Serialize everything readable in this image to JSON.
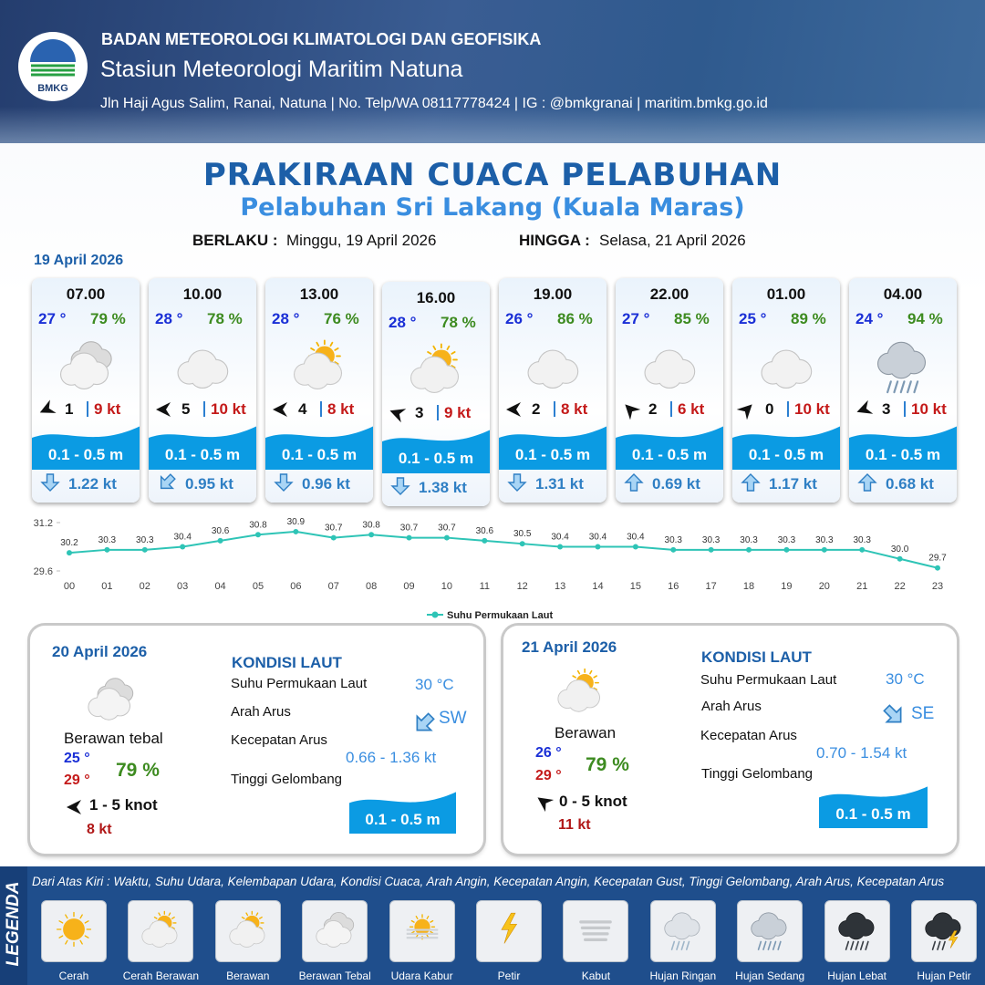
{
  "header": {
    "logo": "BMKG",
    "agency": "BADAN METEOROLOGI KLIMATOLOGI DAN GEOFISIKA",
    "station": "Stasiun Meteorologi Maritim Natuna",
    "address": "Jln Haji Agus Salim, Ranai, Natuna  | No. Telp/WA 08117778424 | IG : @bmkgranai | maritim.bmkg.go.id"
  },
  "title": "PRAKIRAAN CUACA PELABUHAN",
  "subtitle": "Pelabuhan Sri Lakang (Kuala Maras)",
  "validity": {
    "from_label": "BERLAKU :",
    "from": "Minggu, 19 April 2026",
    "to_label": "HINGGA :",
    "to": "Selasa, 21 April 2026"
  },
  "today": {
    "date": "19 April 2026",
    "forecasts": [
      {
        "time": "07.00",
        "temp": "27 °",
        "humidity": "79 %",
        "wind": "1",
        "gust": "9 kt",
        "wave": "0.1 - 0.5 m",
        "current": "1.22 kt"
      },
      {
        "time": "10.00",
        "temp": "28 °",
        "humidity": "78 %",
        "wind": "5",
        "gust": "10 kt",
        "wave": "0.1 - 0.5 m",
        "current": "0.95 kt"
      },
      {
        "time": "13.00",
        "temp": "28 °",
        "humidity": "76 %",
        "wind": "4",
        "gust": "8 kt",
        "wave": "0.1 - 0.5 m",
        "current": "0.96 kt"
      },
      {
        "time": "16.00",
        "temp": "28 °",
        "humidity": "78 %",
        "wind": "3",
        "gust": "9 kt",
        "wave": "0.1 - 0.5 m",
        "current": "1.38 kt"
      },
      {
        "time": "19.00",
        "temp": "26 °",
        "humidity": "86 %",
        "wind": "2",
        "gust": "8 kt",
        "wave": "0.1 - 0.5 m",
        "current": "1.31 kt"
      },
      {
        "time": "22.00",
        "temp": "27 °",
        "humidity": "85 %",
        "wind": "2",
        "gust": "6 kt",
        "wave": "0.1 - 0.5 m",
        "current": "0.69 kt"
      },
      {
        "time": "01.00",
        "temp": "25 °",
        "humidity": "89 %",
        "wind": "0",
        "gust": "10 kt",
        "wave": "0.1 - 0.5 m",
        "current": "1.17 kt"
      },
      {
        "time": "04.00",
        "temp": "24 °",
        "humidity": "94 %",
        "wind": "3",
        "gust": "10 kt",
        "wave": "0.1 - 0.5 m",
        "current": "0.68 kt"
      }
    ]
  },
  "chart_data": {
    "type": "line",
    "categories": [
      "00",
      "01",
      "02",
      "03",
      "04",
      "05",
      "06",
      "07",
      "08",
      "09",
      "10",
      "11",
      "12",
      "13",
      "14",
      "15",
      "16",
      "17",
      "18",
      "19",
      "20",
      "21",
      "22",
      "23"
    ],
    "ylim": [
      29.6,
      31.2
    ],
    "yticks": [
      29.6,
      31.2
    ],
    "legend": "bottom",
    "series": [
      {
        "name": "Suhu Permukaan Laut",
        "color": "#2ec4b6",
        "values": [
          30.2,
          30.3,
          30.3,
          30.4,
          30.6,
          30.8,
          30.9,
          30.7,
          30.8,
          30.7,
          30.7,
          30.6,
          30.5,
          30.4,
          30.4,
          30.4,
          30.3,
          30.3,
          30.3,
          30.3,
          30.3,
          30.3,
          30.0,
          29.7
        ],
        "value_labels": [
          "30.2",
          "30.3",
          "30.3",
          "30.4",
          "30.6",
          "30.8",
          "30.9",
          "30.7",
          "30.8",
          "30.7",
          "30.7",
          "30.6",
          "30.5",
          "30.4",
          "30.4",
          "30.4",
          "30.3",
          "30.3",
          "30.3",
          "30.3",
          "30.3",
          "30.3",
          "30.0",
          "29.7"
        ]
      }
    ]
  },
  "days": [
    {
      "date": "20 April 2026",
      "condition": "Berawan tebal",
      "temp_min": "25 °",
      "temp_max": "29 °",
      "humidity": "79 %",
      "wind": "1  - 5 knot",
      "gust": "8 kt",
      "sea": {
        "title": "KONDISI LAUT",
        "sst_label": "Suhu Permukaan Laut",
        "sst": "30 °C",
        "dir_label": "Arah Arus",
        "dir": "SW",
        "speed_label": "Kecepatan Arus",
        "speed": "0.66  - 1.36 kt",
        "wave_label": "Tinggi Gelombang",
        "wave": "0.1 - 0.5 m"
      }
    },
    {
      "date": "21 April 2026",
      "condition": "Berawan",
      "temp_min": "26 °",
      "temp_max": "29 °",
      "humidity": "79 %",
      "wind": "0  - 5 knot",
      "gust": "11 kt",
      "sea": {
        "title": "KONDISI LAUT",
        "sst_label": "Suhu Permukaan Laut",
        "sst": "30 °C",
        "dir_label": "Arah Arus",
        "dir": "SE",
        "speed_label": "Kecepatan Arus",
        "speed": "0.70  - 1.54 kt",
        "wave_label": "Tinggi Gelombang",
        "wave": "0.1 - 0.5 m"
      }
    }
  ],
  "legend": {
    "title": "LEGENDA",
    "description": "Dari Atas Kiri : Waktu, Suhu Udara, Kelembapan Udara, Kondisi Cuaca, Arah Angin, Kecepatan Angin, Kecepatan Gust, Tinggi Gelombang, Arah Arus, Kecepatan Arus",
    "items": [
      "Cerah",
      "Cerah Berawan",
      "Berawan",
      "Berawan Tebal",
      "Udara Kabur",
      "Petir",
      "Kabut",
      "Hujan Ringan",
      "Hujan Sedang",
      "Hujan Lebat",
      "Hujan Petir"
    ]
  }
}
